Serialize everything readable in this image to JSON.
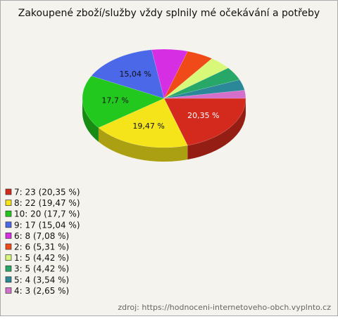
{
  "chart_data": {
    "type": "pie",
    "title": "Zakoupené zboží/služby vždy splnily mé očekávání a potřeby",
    "categories": [
      "7: 23 (20,35 %)",
      "8: 22 (19,47 %)",
      "10: 20 (17,7 %)",
      "9: 17 (15,04 %)",
      "6: 8 (7,08 %)",
      "2: 6 (5,31 %)",
      "1: 5 (4,42 %)",
      "3: 5 (4,42 %)",
      "5: 4 (3,54 %)",
      "4: 3 (2,65 %)"
    ],
    "values": [
      20.35,
      19.47,
      17.7,
      15.04,
      7.08,
      5.31,
      4.42,
      4.42,
      3.54,
      2.65
    ],
    "value_labels": [
      "20,35 %",
      "19,47 %",
      "17,7 %",
      "15,04 %",
      null,
      null,
      null,
      null,
      null,
      null
    ],
    "colors": [
      "#d42a1e",
      "#f5e41a",
      "#22c81e",
      "#4a68e8",
      "#d62ee2",
      "#f04a18",
      "#d8f87a",
      "#28a868",
      "#2a8898",
      "#d470cc"
    ],
    "source": "zdroj: https://hodnoceni-internetoveho-obch.vyplnto.cz"
  }
}
